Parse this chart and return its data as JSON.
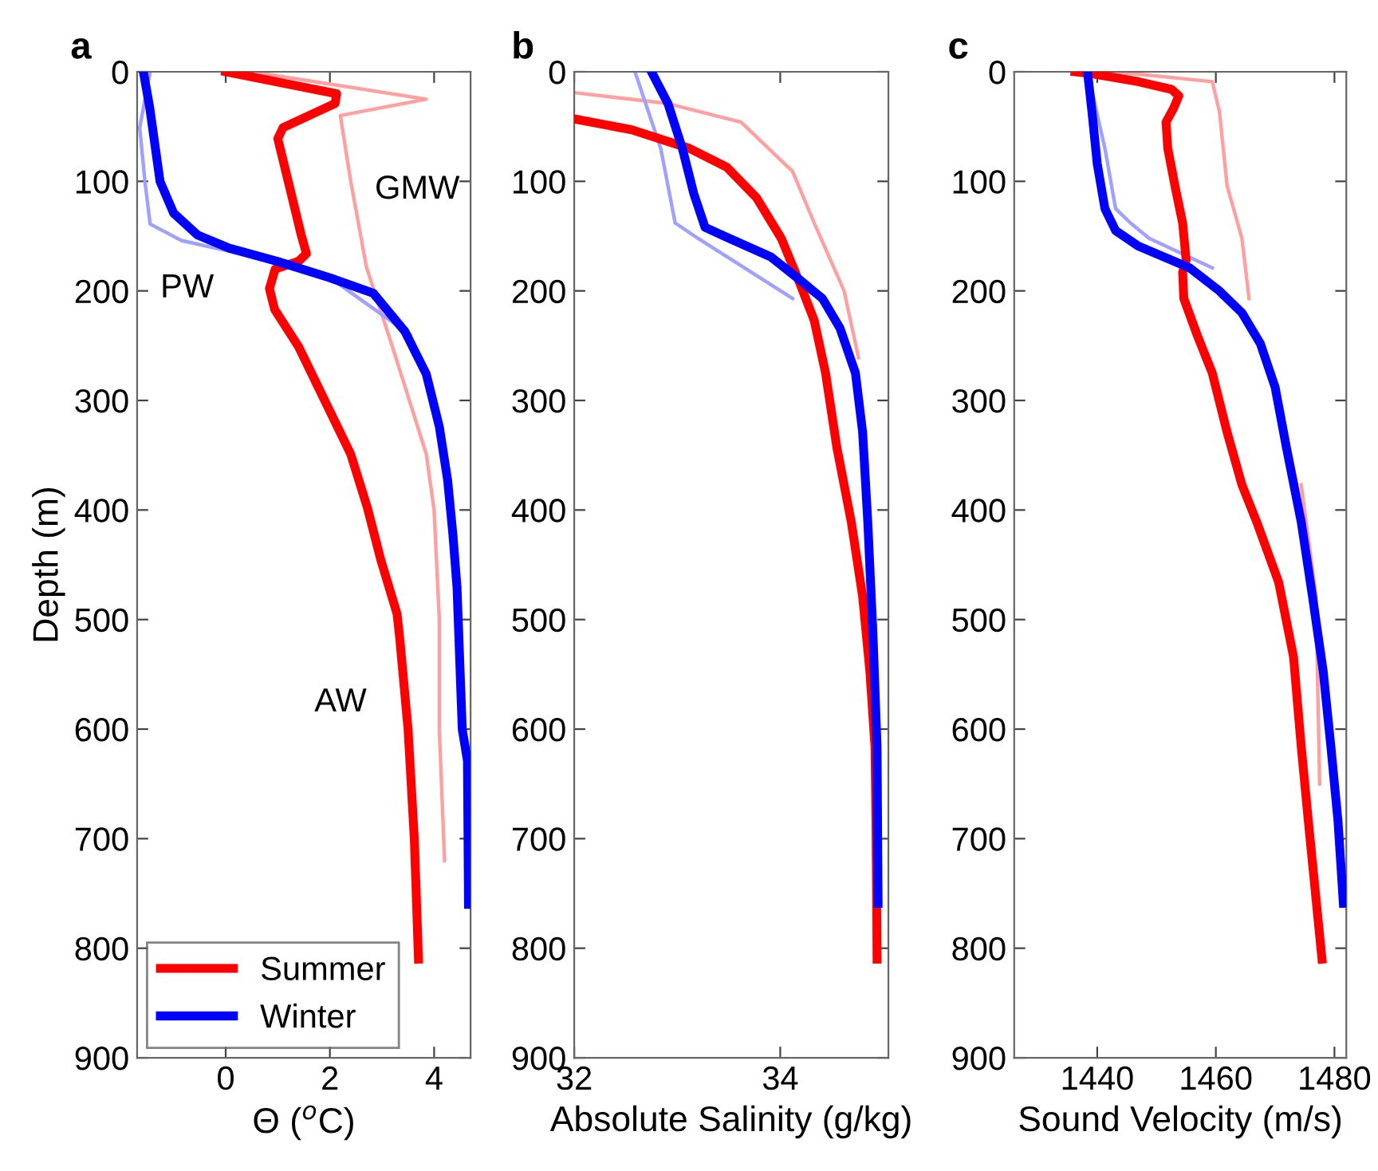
{
  "chart_data": [
    {
      "type": "line",
      "title": "a",
      "xlabel": "Θ ($^{o}$C)",
      "ylabel": "Depth (m)",
      "xlim": [
        -1.7,
        4.7
      ],
      "xticks": [
        0,
        2,
        4
      ],
      "ylim": [
        900,
        0
      ],
      "yticks": [
        0,
        100,
        200,
        300,
        400,
        500,
        600,
        700,
        800,
        900
      ],
      "grid": false,
      "legend": "bottom left",
      "line_style": "solid",
      "marker": "none",
      "annotations": [
        "GMW",
        "PW",
        "AW"
      ],
      "series": [
        {
          "color": "#ffa0a0",
          "x": [
            0.5,
            3.85,
            2.2,
            2.4,
            2.7,
            3.2,
            3.85,
            4.0,
            4.1,
            4.1,
            4.2
          ],
          "values": [
            0,
            25,
            40,
            100,
            178,
            251,
            349,
            400,
            500,
            600,
            720
          ]
        },
        {
          "color": "#a0a0ff",
          "x": [
            -1.45,
            -1.65,
            -1.55,
            -1.45,
            -0.85,
            0.28,
            2.0,
            3.54
          ],
          "values": [
            0,
            51,
            100,
            139,
            154,
            166,
            188,
            240
          ]
        },
        {
          "name": "Summer",
          "color": "#ff0000",
          "x": [
            0.0,
            2.13,
            2.1,
            1.1,
            1.0,
            1.2,
            1.45,
            1.55,
            1.4,
            0.95,
            0.84,
            0.94,
            1.4,
            1.9,
            2.4,
            2.72,
            2.98,
            3.29,
            3.34,
            3.5,
            3.62,
            3.7
          ],
          "values": [
            0,
            20,
            29,
            51,
            61,
            100,
            149,
            166,
            173,
            180,
            198,
            217,
            251,
            300,
            349,
            398,
            446,
            495,
            517,
            600,
            700,
            810
          ]
        },
        {
          "name": "Winter",
          "color": "#0000ff",
          "x": [
            -1.58,
            -1.46,
            -1.26,
            -1.0,
            -0.54,
            0.07,
            0.99,
            2.0,
            2.83,
            3.44,
            3.85,
            4.1,
            4.26,
            4.36,
            4.44,
            4.54,
            4.64,
            4.66
          ],
          "values": [
            0,
            32,
            100,
            129,
            149,
            161,
            173,
            188,
            202,
            237,
            276,
            324,
            373,
            422,
            471,
            600,
            629,
            760
          ]
        }
      ]
    },
    {
      "type": "line",
      "title": "b",
      "xlabel": "Absolute Salinity (g/kg)",
      "xlim": [
        32,
        35.05
      ],
      "xticks": [
        32,
        34
      ],
      "ylim": [
        900,
        0
      ],
      "yticks": [
        0,
        100,
        200,
        300,
        400,
        500,
        600,
        700,
        800,
        900
      ],
      "grid": false,
      "legend": false,
      "line_style": "solid",
      "marker": "none",
      "series": [
        {
          "color": "#ffa0a0",
          "x": [
            32.0,
            32.91,
            33.62,
            34.12,
            34.33,
            34.62,
            34.76
          ],
          "values": [
            19,
            29,
            46,
            91,
            138,
            200,
            261
          ]
        },
        {
          "color": "#a0a0ff",
          "x": [
            32.59,
            32.84,
            32.98,
            33.2,
            34.12
          ],
          "values": [
            0,
            70,
            138,
            152,
            207
          ]
        },
        {
          "color": "#ff0000",
          "x": [
            32.0,
            32.56,
            33.12,
            33.48,
            33.77,
            34.01,
            34.19,
            34.33,
            34.44,
            34.55,
            34.69,
            34.8,
            34.87,
            34.92,
            34.93,
            34.94
          ],
          "values": [
            43,
            53,
            70,
            87,
            115,
            152,
            193,
            227,
            275,
            343,
            411,
            479,
            547,
            616,
            684,
            810
          ]
        },
        {
          "color": "#0000ff",
          "x": [
            32.75,
            32.91,
            33.05,
            33.16,
            33.27,
            33.48,
            33.91,
            34.19,
            34.41,
            34.58,
            34.73,
            34.8,
            34.85,
            34.9,
            34.94,
            34.95
          ],
          "values": [
            0,
            29,
            70,
            111,
            142,
            151,
            169,
            190,
            207,
            234,
            275,
            329,
            411,
            513,
            616,
            759
          ]
        }
      ]
    },
    {
      "type": "line",
      "title": "c",
      "xlabel": "Sound Velocity (m/s)",
      "xlim": [
        1426,
        1482
      ],
      "xticks": [
        1440,
        1460,
        1480
      ],
      "ylim": [
        900,
        0
      ],
      "yticks": [
        0,
        100,
        200,
        300,
        400,
        500,
        600,
        700,
        800,
        900
      ],
      "grid": false,
      "legend": false,
      "line_style": "solid",
      "marker": "none",
      "series": [
        {
          "color": "#ffa0a0",
          "x": [
            1443,
            1459.4,
            1460.6,
            1461.9,
            1464.4,
            1465.6,
            1469.4,
            1474.4,
            1476.9,
            1477.5
          ],
          "values": [
            0,
            9,
            36,
            104,
            152,
            207,
            null,
            377,
            479,
            650
          ]
        },
        {
          "color": "#a0a0ff",
          "x": [
            1438.75,
            1441.3,
            1443.1,
            1445.6,
            1448.75,
            1459.4
          ],
          "values": [
            9,
            70,
            125,
            138,
            152,
            179
          ]
        },
        {
          "color": "#ff0000",
          "x": [
            1436.25,
            1439.4,
            1446.9,
            1452.5,
            1453.75,
            1452.9,
            1451.6,
            1451.9,
            1453.1,
            1454.4,
            1455,
            1454.4,
            1454.6,
            1456.9,
            1459.4,
            1461.9,
            1464.4,
            1466.9,
            1470.6,
            1473.1,
            1474.4,
            1475.6,
            1477.9
          ],
          "values": [
            0,
            2,
            9,
            16,
            22,
            33,
            46,
            70,
            104,
            138,
            172,
            183,
            207,
            241,
            275,
            329,
            377,
            411,
            466,
            534,
            616,
            684,
            810
          ]
        },
        {
          "color": "#0000ff",
          "x": [
            1438.4,
            1439.1,
            1440,
            1441.3,
            1443.1,
            1446.9,
            1455.6,
            1460.6,
            1464.4,
            1467.5,
            1470,
            1471.9,
            1474.4,
            1476.3,
            1478.1,
            1479.4,
            1480.6,
            1481.5
          ],
          "values": [
            2,
            36,
            84,
            125,
            145,
            159,
            179,
            200,
            220,
            248,
            288,
            343,
            411,
            479,
            547,
            616,
            684,
            759
          ]
        }
      ]
    }
  ]
}
